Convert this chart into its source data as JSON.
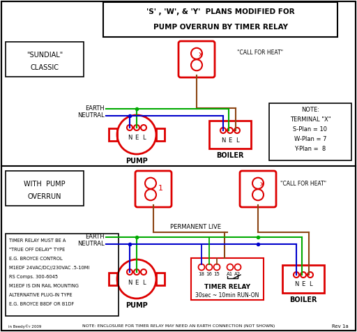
{
  "title_line1": "'S' , 'W', & 'Y'  PLANS MODIFIED FOR",
  "title_line2": "PUMP OVERRUN BY TIMER RELAY",
  "bg_color": "#ffffff",
  "border_color": "#000000",
  "red": "#dd0000",
  "green": "#00aa00",
  "blue": "#0000cc",
  "brown": "#8B4513",
  "note_text_lines": [
    "NOTE:",
    "TERMINAL \"X\"",
    "S-Plan = 10",
    "W-Plan = 7",
    "Y-Plan =  8"
  ],
  "timer_note": "NOTE: ENCLOSURE FOR TIMER RELAY MAY NEED AN EARTH CONNECTION (NOT SHOWN)",
  "footer": "Rev 1a",
  "info_lines": [
    "TIMER RELAY MUST BE A",
    "\"TRUE OFF DELAY\" TYPE",
    "E.G. BROYCE CONTROL",
    "M1EDF 24VAC/DC//230VAC .5-10MI",
    "RS Comps. 300-6045",
    "M1EDF IS DIN RAIL MOUNTING",
    "ALTERNATIVE PLUG-IN TYPE",
    "E.G. BROYCE B8DF OR B1DF"
  ]
}
